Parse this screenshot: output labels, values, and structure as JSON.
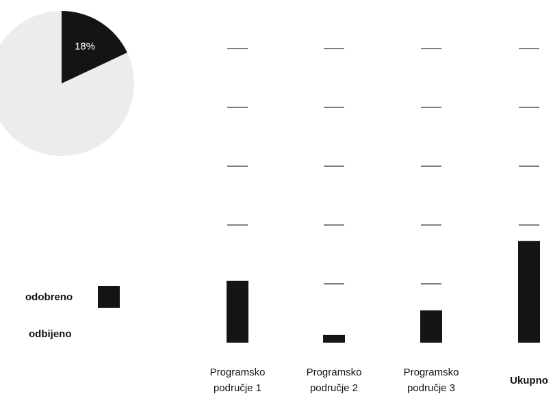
{
  "chart_data": [
    {
      "type": "pie",
      "categories": [
        null,
        null
      ],
      "values": [
        18,
        82
      ],
      "value_labels": [
        "18%",
        null
      ],
      "colors": [
        "#141414",
        "#ececec"
      ]
    },
    {
      "type": "bar",
      "categories": [
        "Programsko područje 1",
        "Programsko područje 2",
        "Programsko područje 3",
        "Ukupno"
      ],
      "series": [
        {
          "name": "odobreno",
          "color": "#141414",
          "values": [
            1.05,
            0.13,
            0.55,
            1.73
          ]
        }
      ],
      "legend_entries": [
        {
          "name": "odobreno",
          "color": "#141414"
        },
        {
          "name": "odbijeno",
          "color": "#ffffff"
        }
      ],
      "ylim": [
        0,
        5
      ],
      "yticks": [
        1,
        2,
        3,
        4,
        5
      ],
      "grid": true
    }
  ]
}
